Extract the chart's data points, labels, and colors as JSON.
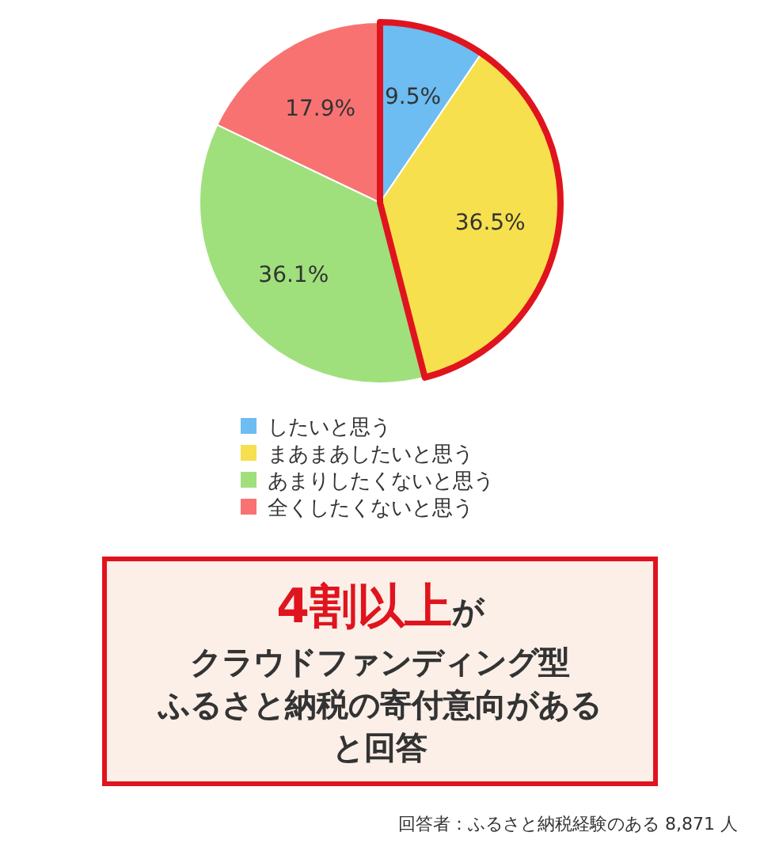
{
  "chart_data": {
    "type": "pie",
    "categories": [
      "したいと思う",
      "まあまあしたいと思う",
      "あまりしたくないと思う",
      "全くしたくないと思う"
    ],
    "values": [
      9.5,
      36.5,
      36.1,
      17.9
    ],
    "colors": [
      "#6dbcf2",
      "#f7e04e",
      "#9fe07c",
      "#f87272"
    ],
    "value_labels": [
      "9.5%",
      "36.5%",
      "36.1%",
      "17.9%"
    ],
    "legend": "bottom",
    "annotations": [
      "4割以上",
      "が",
      "クラウドファンディング型",
      "ふるさと納税の寄付意向がある",
      "と回答",
      "回答者：ふるさと納税経験のある 8,871 人"
    ]
  }
}
